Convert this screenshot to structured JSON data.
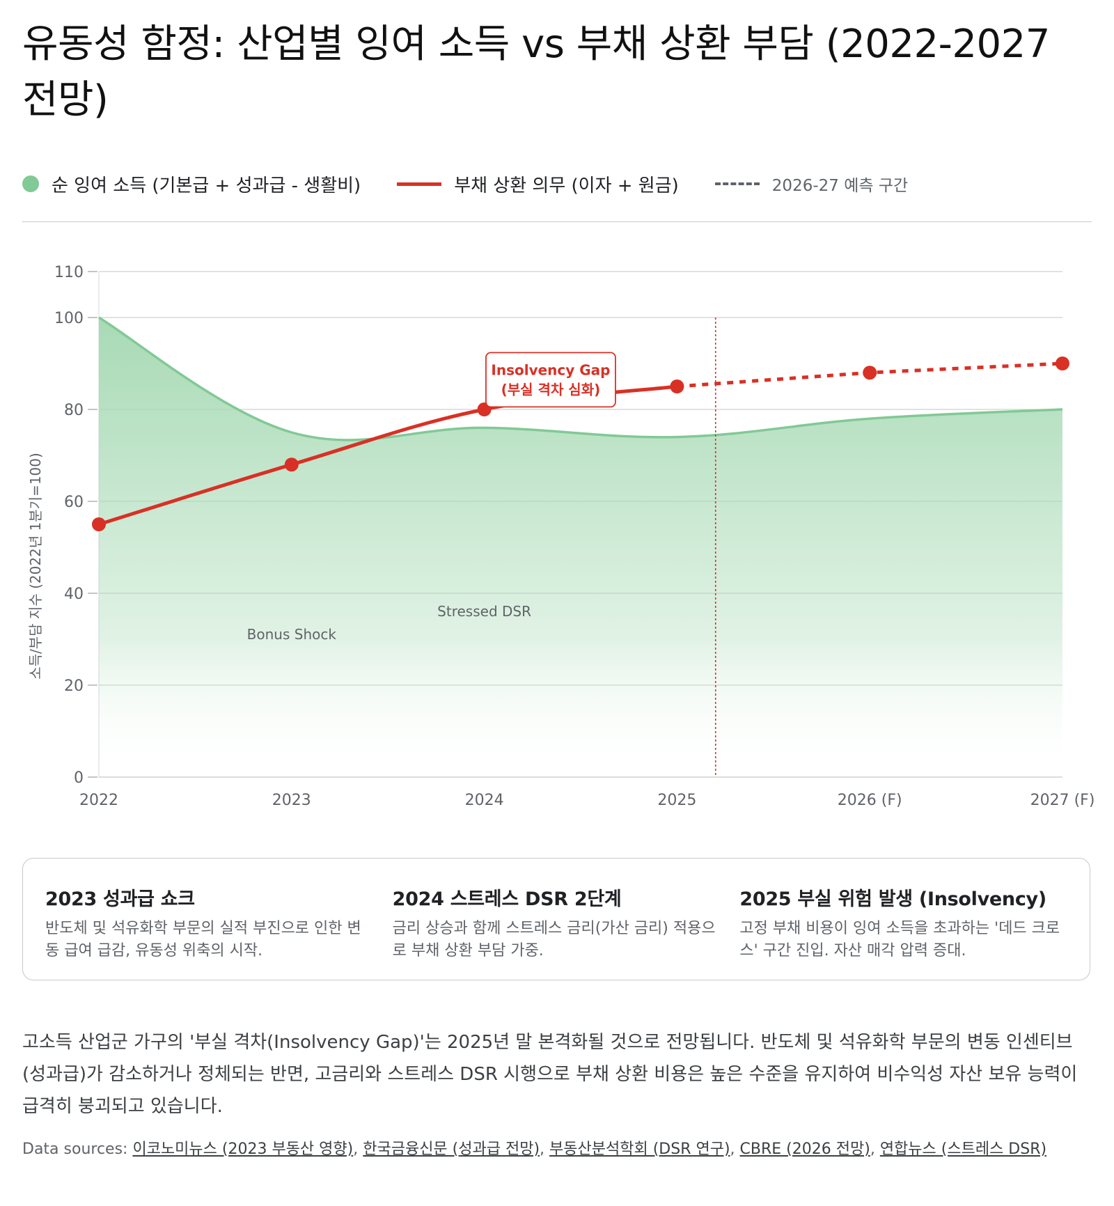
{
  "title": "유동성 함정: 산업별 잉여 소득 vs 부채 상환 부담 (2022-2027 전망)",
  "legend": {
    "income_label": "순 잉여 소득 (기본급 + 성과급 - 생활비)",
    "debt_label": "부채 상환 의무 (이자 + 원금)",
    "forecast_label": "2026-27 예측 구간"
  },
  "colors": {
    "income_line": "#81c995",
    "income_fill": "#a8dab5",
    "debt_line": "#d93025",
    "grid": "#d0d0d0",
    "text_muted": "#5f6368"
  },
  "chart_data": {
    "type": "line",
    "x": [
      "2022",
      "2023",
      "2024",
      "2025",
      "2026 (F)",
      "2027 (F)"
    ],
    "series": [
      {
        "name": "순 잉여 소득 (기본급 + 성과급 - 생활비)",
        "type": "area",
        "values": [
          100,
          75,
          76,
          74,
          78,
          80
        ]
      },
      {
        "name": "부채 상환 의무 (이자 + 원금)",
        "type": "line",
        "values": [
          55,
          68,
          80,
          85,
          88,
          90
        ]
      }
    ],
    "forecast_from_index": 3,
    "ylabel": "소득/부담 지수 (2022년 1분기=100)",
    "xlabel": "",
    "ylim": [
      0,
      110
    ],
    "yticks": [
      0,
      20,
      40,
      60,
      80,
      100,
      110
    ],
    "grid": true,
    "annotations": [
      {
        "text": "Bonus Shock",
        "x": "2023",
        "y": 30
      },
      {
        "text": "Stressed DSR",
        "x": "2024",
        "y": 35
      }
    ],
    "callout": {
      "line1": "Insolvency Gap",
      "line2": "(부실 격차 심화)",
      "x": 2.2,
      "y": 86
    },
    "vline_x": 3.2
  },
  "cards": [
    {
      "title": "2023 성과급 쇼크",
      "body": "반도체 및 석유화학 부문의 실적 부진으로 인한 변동 급여 급감, 유동성 위축의 시작."
    },
    {
      "title": "2024 스트레스 DSR 2단계",
      "body": "금리 상승과 함께 스트레스 금리(가산 금리) 적용으로 부채 상환 부담 가중."
    },
    {
      "title": "2025 부실 위험 발생 (Insolvency)",
      "body": "고정 부채 비용이 잉여 소득을 초과하는 '데드 크로스' 구간 진입. 자산 매각 압력 증대."
    }
  ],
  "summary": "고소득 산업군 가구의 '부실 격차(Insolvency Gap)'는 2025년 말 본격화될 것으로 전망됩니다. 반도체 및 석유화학 부문의 변동 인센티브(성과급)가 감소하거나 정체되는 반면, 고금리와 스트레스 DSR 시행으로 부채 상환 비용은 높은 수준을 유지하여 비수익성 자산 보유 능력이 급격히 붕괴되고 있습니다.",
  "sources": {
    "prefix": "Data sources: ",
    "links": [
      "이코노미뉴스 (2023 부동산 영향)",
      "한국금융신문 (성과급 전망)",
      "부동산분석학회 (DSR 연구)",
      "CBRE (2026 전망)",
      "연합뉴스 (스트레스 DSR)"
    ]
  }
}
